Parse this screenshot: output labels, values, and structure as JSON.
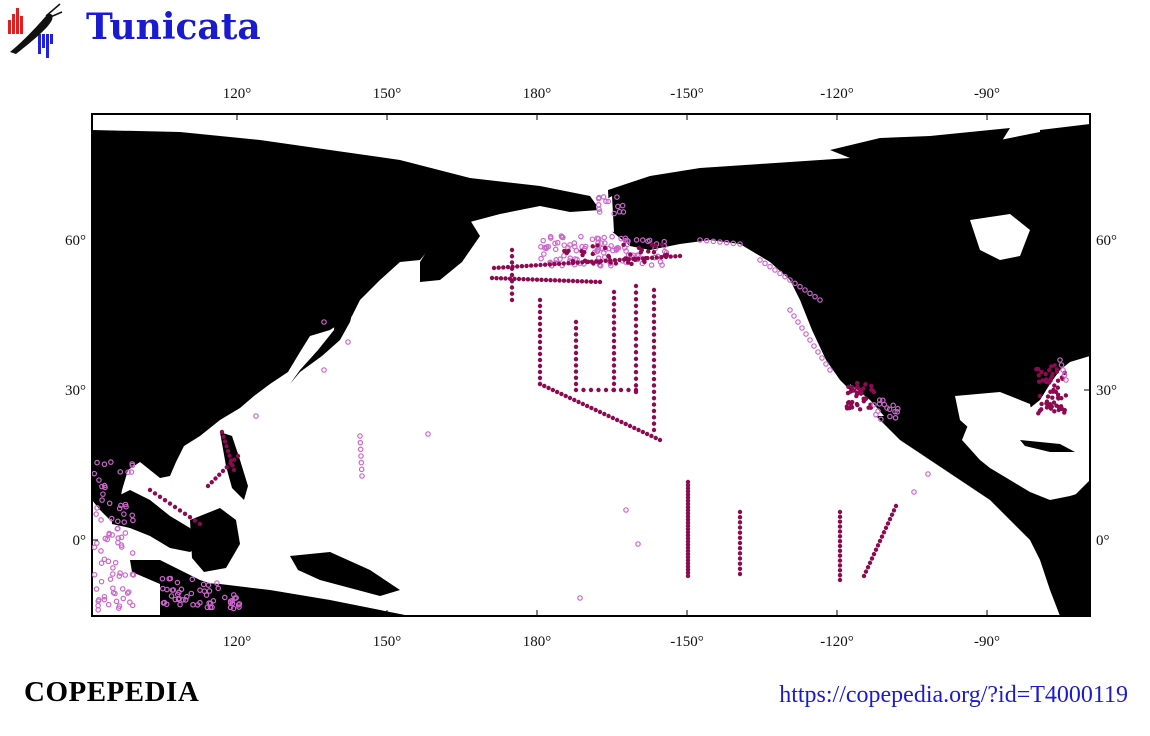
{
  "header": {
    "title": "Tunicata",
    "logo_icon": "copepod-logo-icon"
  },
  "map": {
    "lon_range": [
      90,
      -70
    ],
    "lat_range": [
      -15,
      85
    ],
    "top_ticks": [
      "120°",
      "150°",
      "180°",
      "-150°",
      "-120°",
      "-90°"
    ],
    "bottom_ticks": [
      "120°",
      "150°",
      "180°",
      "-150°",
      "-120°",
      "-90°"
    ],
    "left_ticks": [
      "60°",
      "30°",
      "0°"
    ],
    "right_ticks": [
      "60°",
      "30°",
      "0°"
    ],
    "land_color": "#000000",
    "ocean_color": "#ffffff",
    "record_colors": {
      "dark": "#8b0a50",
      "light": "#cc66cc"
    }
  },
  "footer": {
    "brand": "COPEPEDIA",
    "url": "https://copepedia.org/?id=T4000119"
  }
}
